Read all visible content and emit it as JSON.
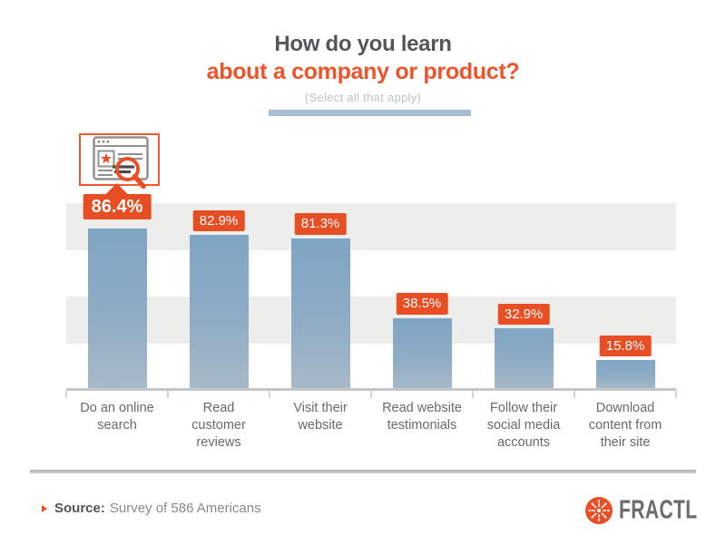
{
  "header": {
    "title_line1": "How do you learn",
    "title_line2": "about a company or product?",
    "subtitle": "(Select all that apply)",
    "title_color": "#55565A",
    "accent_color": "#F0532A",
    "underline_color": "#A7BED2"
  },
  "chart_data": {
    "type": "bar",
    "title": "How do you learn about a company or product?",
    "subtitle": "(Select all that apply)",
    "categories": [
      "Do an online search",
      "Read customer reviews",
      "Visit their website",
      "Read website testimonials",
      "Follow their social media accounts",
      "Download content from their site"
    ],
    "categories_lines": [
      [
        "Do an online",
        "search"
      ],
      [
        "Read",
        "customer",
        "reviews"
      ],
      [
        "Visit their",
        "website"
      ],
      [
        "Read website",
        "testimonials"
      ],
      [
        "Follow their",
        "social media",
        "accounts"
      ],
      [
        "Download",
        "content from",
        "their site"
      ]
    ],
    "values": [
      86.4,
      82.9,
      81.3,
      38.5,
      32.9,
      15.8
    ],
    "value_labels": [
      "86.4%",
      "82.9%",
      "81.3%",
      "38.5%",
      "32.9%",
      "15.8%"
    ],
    "xlabel": "",
    "ylabel": "",
    "ylim": [
      0,
      100
    ],
    "grid": "horizontal quartile stripes (25% bands), no tick labels",
    "legend": "none",
    "highlight_index": 0,
    "bar_color": "#8FACC5",
    "label_bg_color": "#E84E24",
    "stripe_colors": [
      "#EDEDEB",
      "#FFFFFF",
      "#EDEDEB",
      "#FFFFFF"
    ]
  },
  "icons": {
    "highlight_icon": "browser-search-icon",
    "source_bullet": "triangle-right-icon",
    "brand_icon": "fractl-snowflake-icon"
  },
  "footer": {
    "source_label": "Source:",
    "source_text": "Survey of 586 Americans",
    "brand": "FRACTL",
    "brand_color": "#E94E25"
  }
}
